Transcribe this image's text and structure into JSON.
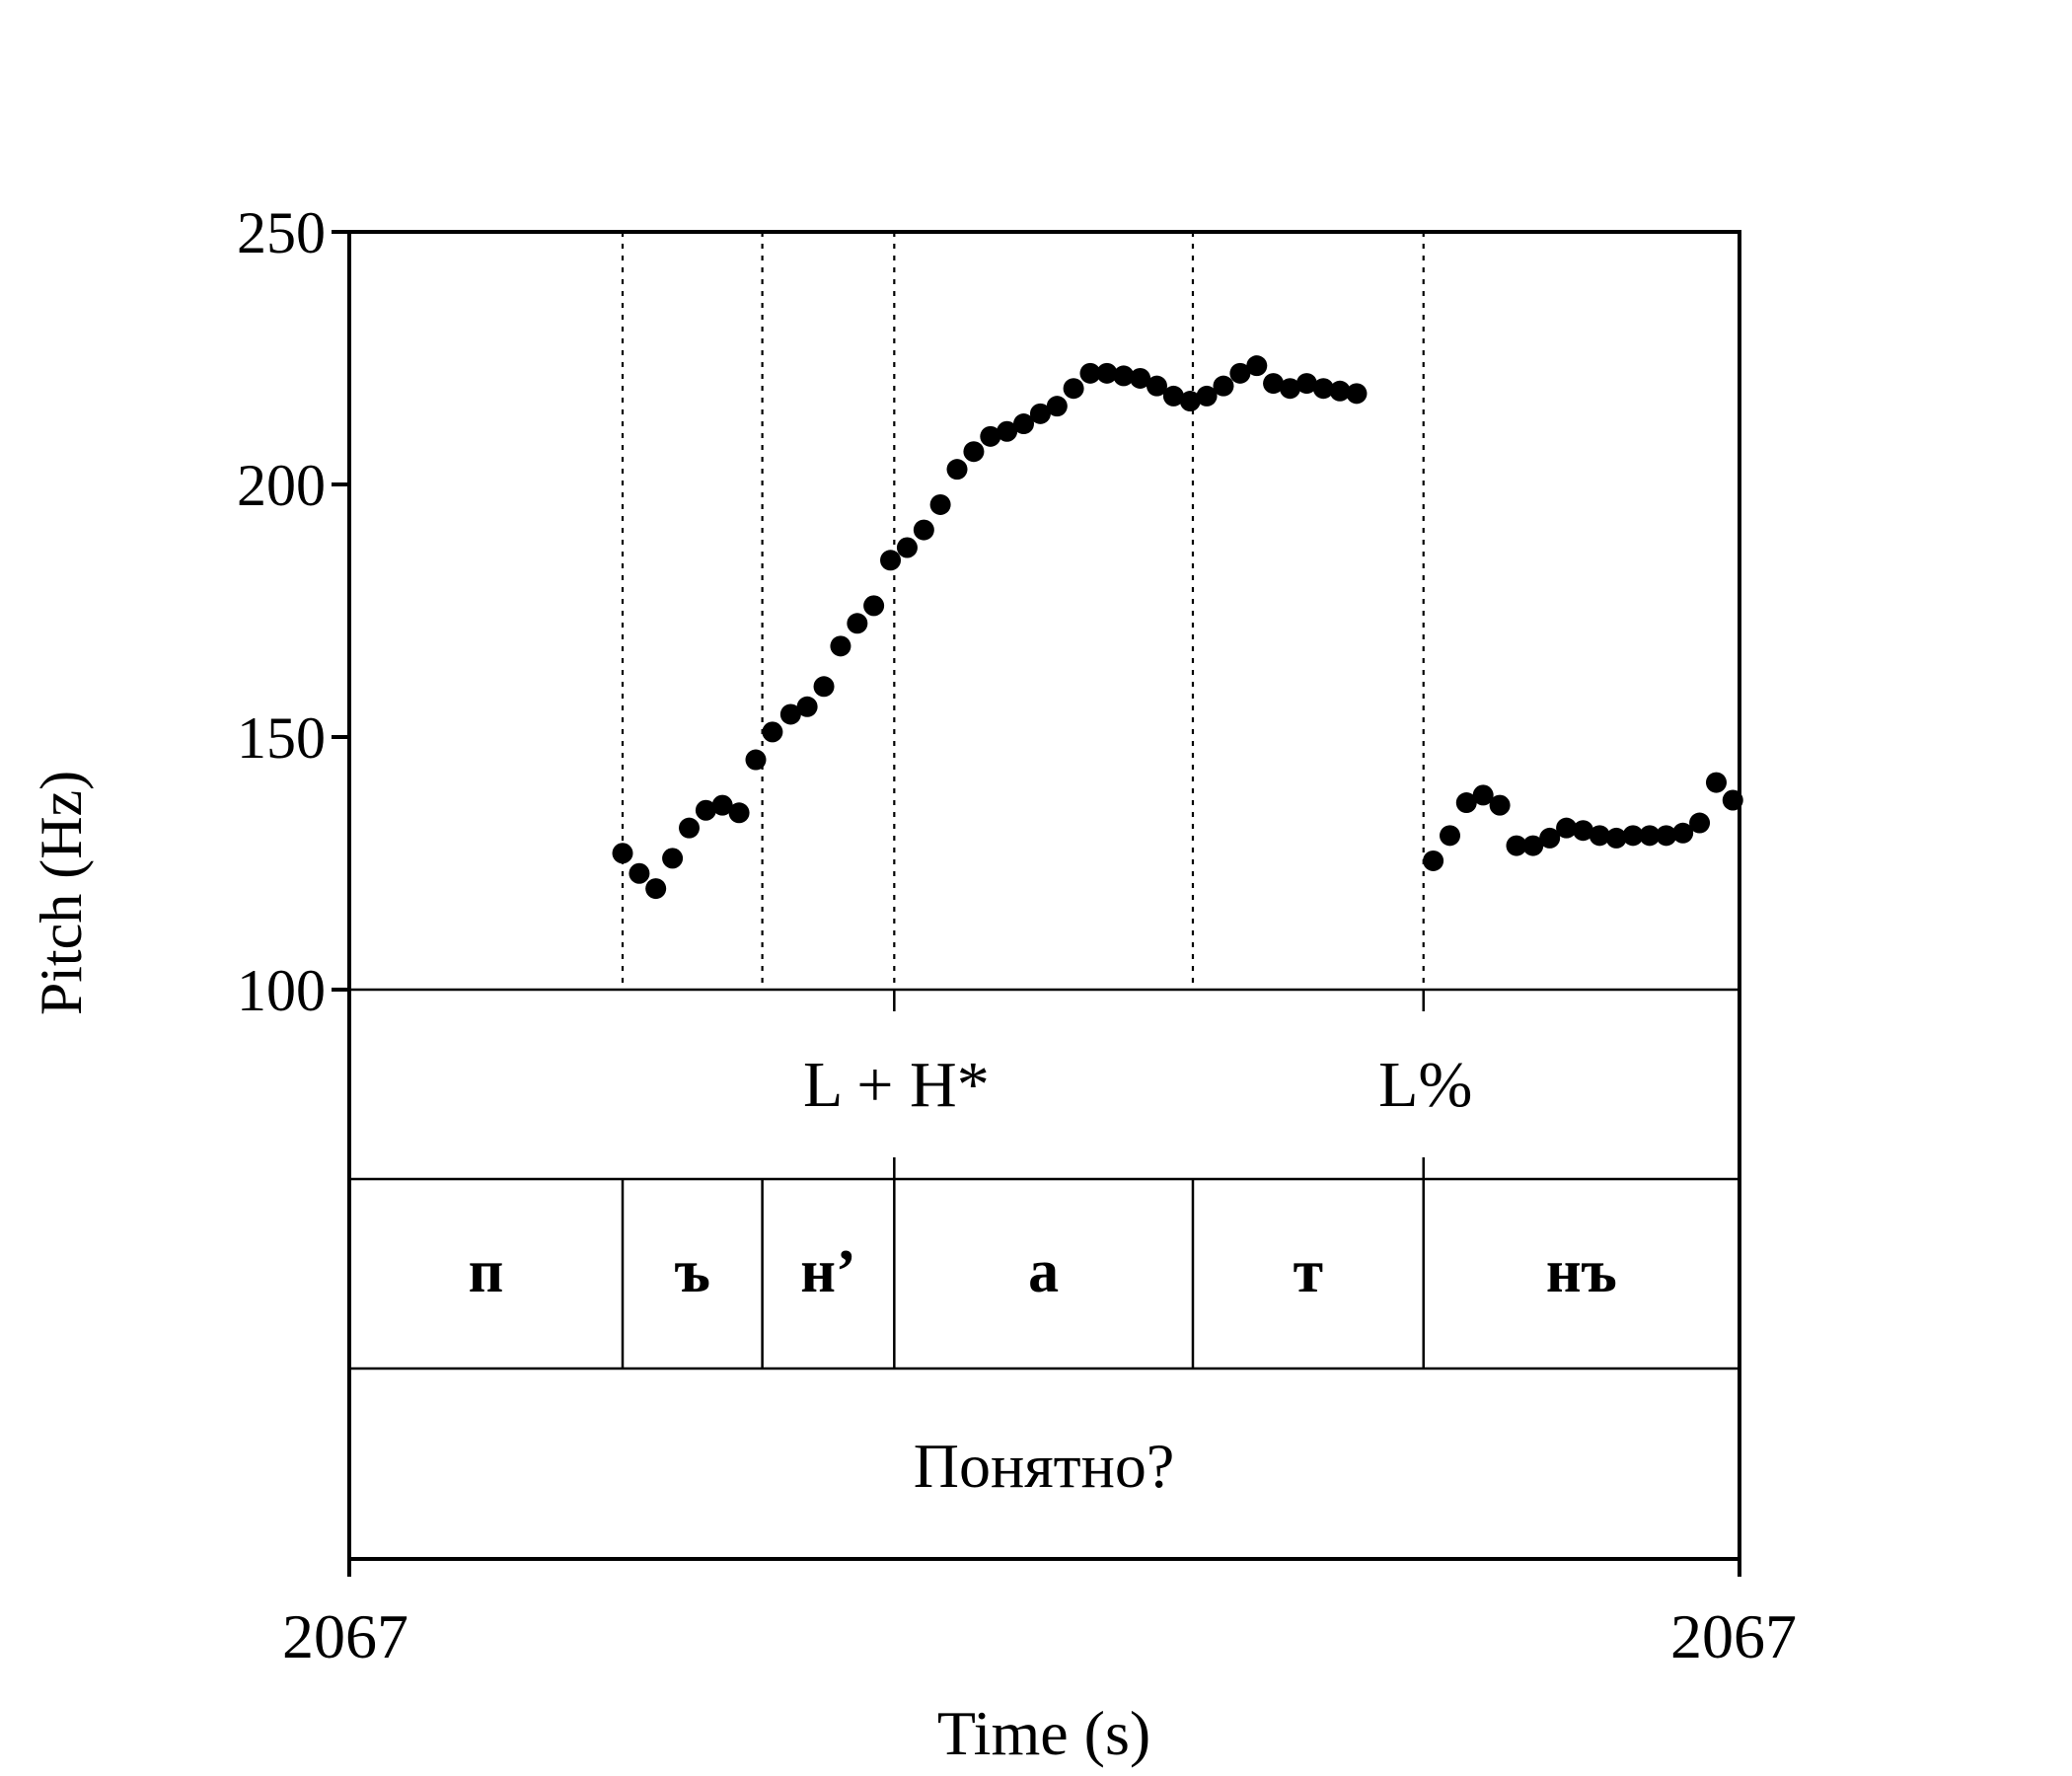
{
  "chart_data": {
    "type": "scatter",
    "xlabel": "Time (s)",
    "ylabel": "Pitch (Hz)",
    "ylim": [
      100,
      250
    ],
    "y_ticks": [
      "250",
      "200",
      "150",
      "100"
    ],
    "x_tick_labels": [
      "2067",
      "2067"
    ],
    "x": [
      0.1966,
      0.2086,
      0.2205,
      0.2325,
      0.2445,
      0.2565,
      0.2684,
      0.2804,
      0.2924,
      0.3044,
      0.3175,
      0.3294,
      0.3414,
      0.3534,
      0.3654,
      0.3773,
      0.3893,
      0.4013,
      0.4133,
      0.4252,
      0.4372,
      0.4492,
      0.4612,
      0.4731,
      0.4851,
      0.4971,
      0.5091,
      0.521,
      0.533,
      0.545,
      0.557,
      0.5689,
      0.5809,
      0.5929,
      0.6049,
      0.6168,
      0.6288,
      0.6408,
      0.6528,
      0.6647,
      0.6767,
      0.6887,
      0.7007,
      0.7126,
      0.7246,
      0.7797,
      0.7917,
      0.8036,
      0.8156,
      0.8276,
      0.8396,
      0.8515,
      0.8635,
      0.8755,
      0.8875,
      0.8994,
      0.9114,
      0.9234,
      0.9354,
      0.9473,
      0.9593,
      0.9713,
      0.9833,
      0.9952
    ],
    "y": [
      127,
      123,
      120,
      126,
      132,
      135.5,
      136.5,
      135,
      145.5,
      151,
      154.5,
      156,
      160,
      168,
      172.5,
      176,
      185,
      187.5,
      191,
      196,
      203,
      206.5,
      209.5,
      210.5,
      212,
      214,
      215.5,
      219,
      222,
      222,
      221.5,
      221,
      219.5,
      217.5,
      216.5,
      217.5,
      219.5,
      222,
      223.5,
      220,
      219,
      220,
      219,
      218.5,
      218,
      125.5,
      130.5,
      137,
      138.5,
      136.5,
      128.5,
      128.5,
      130,
      132,
      131.5,
      130.5,
      130,
      130.5,
      130.5,
      130.5,
      131,
      133,
      141,
      137.5
    ],
    "boundaries": [
      0.1966,
      0.2971,
      0.392,
      0.6068,
      0.7727
    ],
    "tiers": {
      "tones": [
        {
          "label": "L + H*",
          "x": 0.392
        },
        {
          "label": "L%",
          "x": 0.7727
        }
      ],
      "segments": [
        {
          "label": "п",
          "start": 0,
          "end": 0.1966
        },
        {
          "label": "ъ",
          "start": 0.1966,
          "end": 0.2971
        },
        {
          "label": "н’",
          "start": 0.2971,
          "end": 0.392
        },
        {
          "label": "а",
          "start": 0.392,
          "end": 0.6068
        },
        {
          "label": "т",
          "start": 0.6068,
          "end": 0.7727
        },
        {
          "label": "нъ",
          "start": 0.7727,
          "end": 1.0
        }
      ],
      "word": "Понятно?"
    }
  }
}
